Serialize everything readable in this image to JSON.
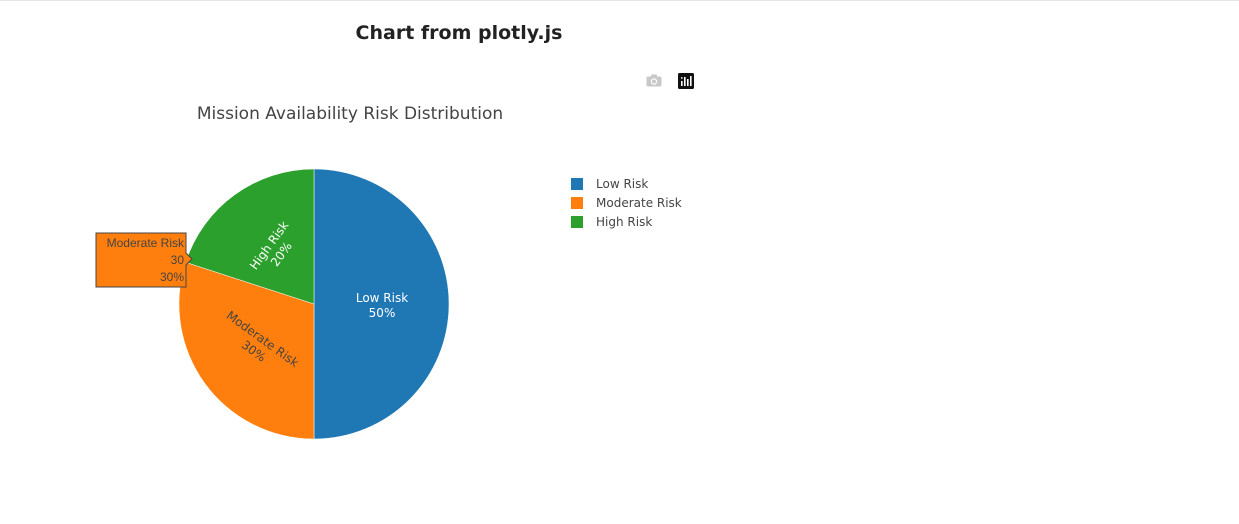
{
  "page": {
    "title": "Chart from plotly.js"
  },
  "modebar": {
    "camera_icon": "camera-icon",
    "plotly_logo_icon": "plotly-logo-icon"
  },
  "chart_data": {
    "type": "pie",
    "title": "Mission Availability Risk Distribution",
    "labels": [
      "Low Risk",
      "Moderate Risk",
      "High Risk"
    ],
    "values": [
      50,
      30,
      20
    ],
    "percents": [
      "50%",
      "30%",
      "20%"
    ],
    "colors": [
      "#1f77b4",
      "#ff7f0e",
      "#2ca02c"
    ],
    "text_colors": [
      "#ffffff",
      "#444444",
      "#ffffff"
    ],
    "legend_position": "right",
    "sort": false,
    "direction": "clockwise",
    "hover": {
      "label": "Moderate Risk",
      "value": "30",
      "percent": "30%"
    }
  }
}
